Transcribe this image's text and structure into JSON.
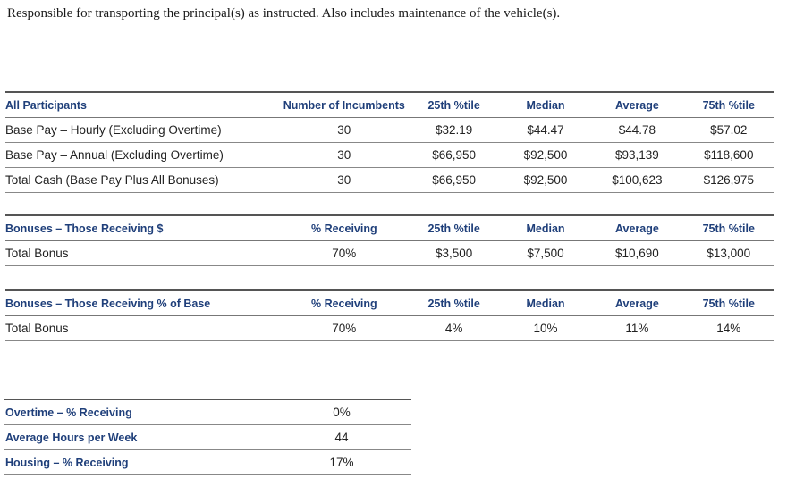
{
  "intro": "Responsible for transporting the principal(s) as instructed. Also includes maintenance of the vehicle(s).",
  "table1": {
    "headers": [
      "All Participants",
      "Number of Incumbents",
      "25th %tile",
      "Median",
      "Average",
      "75th %tile"
    ],
    "rows": [
      [
        "Base Pay – Hourly (Excluding Overtime)",
        "30",
        "$32.19",
        "$44.47",
        "$44.78",
        "$57.02"
      ],
      [
        "Base Pay – Annual (Excluding Overtime)",
        "30",
        "$66,950",
        "$92,500",
        "$93,139",
        "$118,600"
      ],
      [
        "Total Cash (Base Pay Plus All Bonuses)",
        "30",
        "$66,950",
        "$92,500",
        "$100,623",
        "$126,975"
      ]
    ]
  },
  "table2": {
    "headers": [
      "Bonuses – Those Receiving $",
      "% Receiving",
      "25th %tile",
      "Median",
      "Average",
      "75th %tile"
    ],
    "rows": [
      [
        "Total Bonus",
        "70%",
        "$3,500",
        "$7,500",
        "$10,690",
        "$13,000"
      ]
    ]
  },
  "table3": {
    "headers": [
      "Bonuses – Those Receiving % of Base",
      "% Receiving",
      "25th %tile",
      "Median",
      "Average",
      "75th %tile"
    ],
    "rows": [
      [
        "Total Bonus",
        "70%",
        "4%",
        "10%",
        "11%",
        "14%"
      ]
    ]
  },
  "table4": {
    "rows": [
      [
        "Overtime – % Receiving",
        "0%"
      ],
      [
        "Average Hours per Week",
        "44"
      ],
      [
        "Housing – % Receiving",
        "17%"
      ]
    ]
  },
  "colors": {
    "header_text": "#1f3f7a",
    "rule": "#555555"
  }
}
